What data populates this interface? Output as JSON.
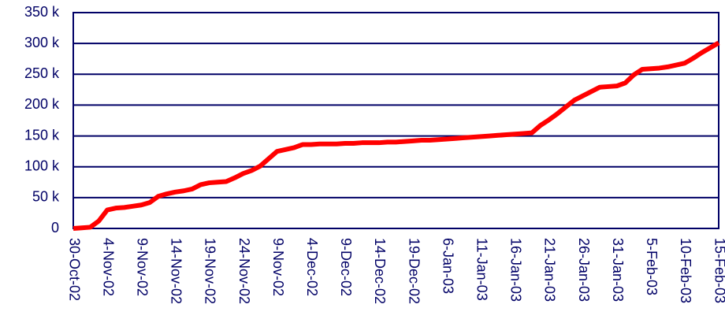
{
  "chart_data": {
    "type": "line",
    "categories": [
      "30-Oct-02",
      null,
      null,
      null,
      "4-Nov-02",
      null,
      null,
      null,
      "9-Nov-02",
      null,
      null,
      null,
      "14-Nov-02",
      null,
      null,
      null,
      "19-Nov-02",
      null,
      null,
      null,
      "24-Nov-02",
      null,
      null,
      null,
      "9-Nov-02",
      null,
      null,
      null,
      "4-Dec-02",
      null,
      null,
      null,
      "9-Dec-02",
      null,
      null,
      null,
      "14-Dec-02",
      null,
      null,
      null,
      "19-Dec-02",
      null,
      null,
      null,
      "6-Jan-03",
      null,
      null,
      null,
      "11-Jan-03",
      null,
      null,
      null,
      "16-Jan-03",
      null,
      null,
      null,
      "21-Jan-03",
      null,
      null,
      null,
      "26-Jan-03",
      null,
      null,
      null,
      "31-Jan-03",
      null,
      null,
      null,
      "5-Feb-03",
      null,
      null,
      null,
      "10-Feb-03",
      null,
      null,
      null,
      "15-Feb-03"
    ],
    "series": [
      {
        "color": "#ff0000",
        "values": [
          0,
          1000,
          2000,
          12000,
          30000,
          33000,
          34000,
          36000,
          38000,
          42000,
          52000,
          56000,
          59000,
          61000,
          64000,
          71000,
          74000,
          75000,
          76000,
          82000,
          89000,
          94000,
          101000,
          113000,
          125000,
          128000,
          131000,
          136000,
          136000,
          137000,
          137000,
          137000,
          138000,
          138000,
          139000,
          139000,
          139000,
          140000,
          140000,
          141000,
          142000,
          143000,
          143000,
          144000,
          145000,
          146000,
          147000,
          148000,
          149000,
          150000,
          151000,
          152000,
          153000,
          154000,
          155000,
          167000,
          176000,
          186000,
          197000,
          208000,
          215000,
          222000,
          229000,
          230000,
          231000,
          236000,
          249000,
          258000,
          259000,
          260000,
          262000,
          265000,
          268000,
          276000,
          285000,
          293000,
          301000
        ]
      }
    ],
    "ylim": [
      0,
      350000
    ],
    "yticks": [
      0,
      {
        "value": 50000,
        "label": "50 k"
      },
      {
        "value": 100000,
        "label": "100 k"
      },
      {
        "value": 150000,
        "label": "150 k"
      },
      {
        "value": 200000,
        "label": "200 k"
      },
      {
        "value": 250000,
        "label": "250 k"
      },
      {
        "value": 300000,
        "label": "300 k"
      },
      {
        "value": 350000,
        "label": "350 k"
      }
    ],
    "grid": true
  }
}
